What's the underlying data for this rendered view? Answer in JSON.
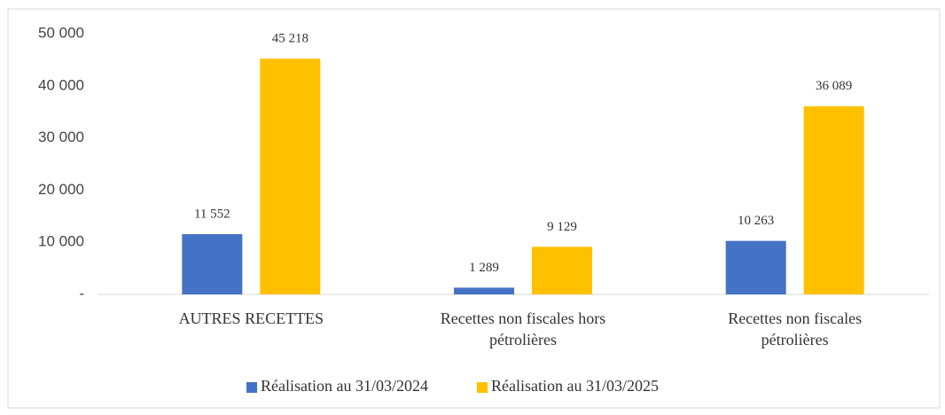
{
  "chart_data": {
    "type": "bar",
    "categories": [
      "AUTRES RECETTES",
      "Recettes non fiscales hors pétrolières",
      "Recettes non fiscales pétrolières"
    ],
    "series": [
      {
        "name": "Réalisation au 31/03/2024",
        "color": "#4472c4",
        "values": [
          11552,
          1289,
          10263
        ],
        "value_labels": [
          "11 552",
          "1 289",
          "10 263"
        ]
      },
      {
        "name": "Réalisation au 31/03/2025",
        "color": "#ffc000",
        "values": [
          45218,
          9129,
          36089
        ],
        "value_labels": [
          "45 218",
          "9 129",
          "36 089"
        ]
      }
    ],
    "ylim": [
      0,
      50000
    ],
    "yticks": [
      {
        "value": 0,
        "label": "-"
      },
      {
        "value": 10000,
        "label": "10 000"
      },
      {
        "value": 20000,
        "label": "20 000"
      },
      {
        "value": 30000,
        "label": "30 000"
      },
      {
        "value": 40000,
        "label": "40 000"
      },
      {
        "value": 50000,
        "label": "50 000"
      }
    ],
    "legend": "bottom"
  }
}
